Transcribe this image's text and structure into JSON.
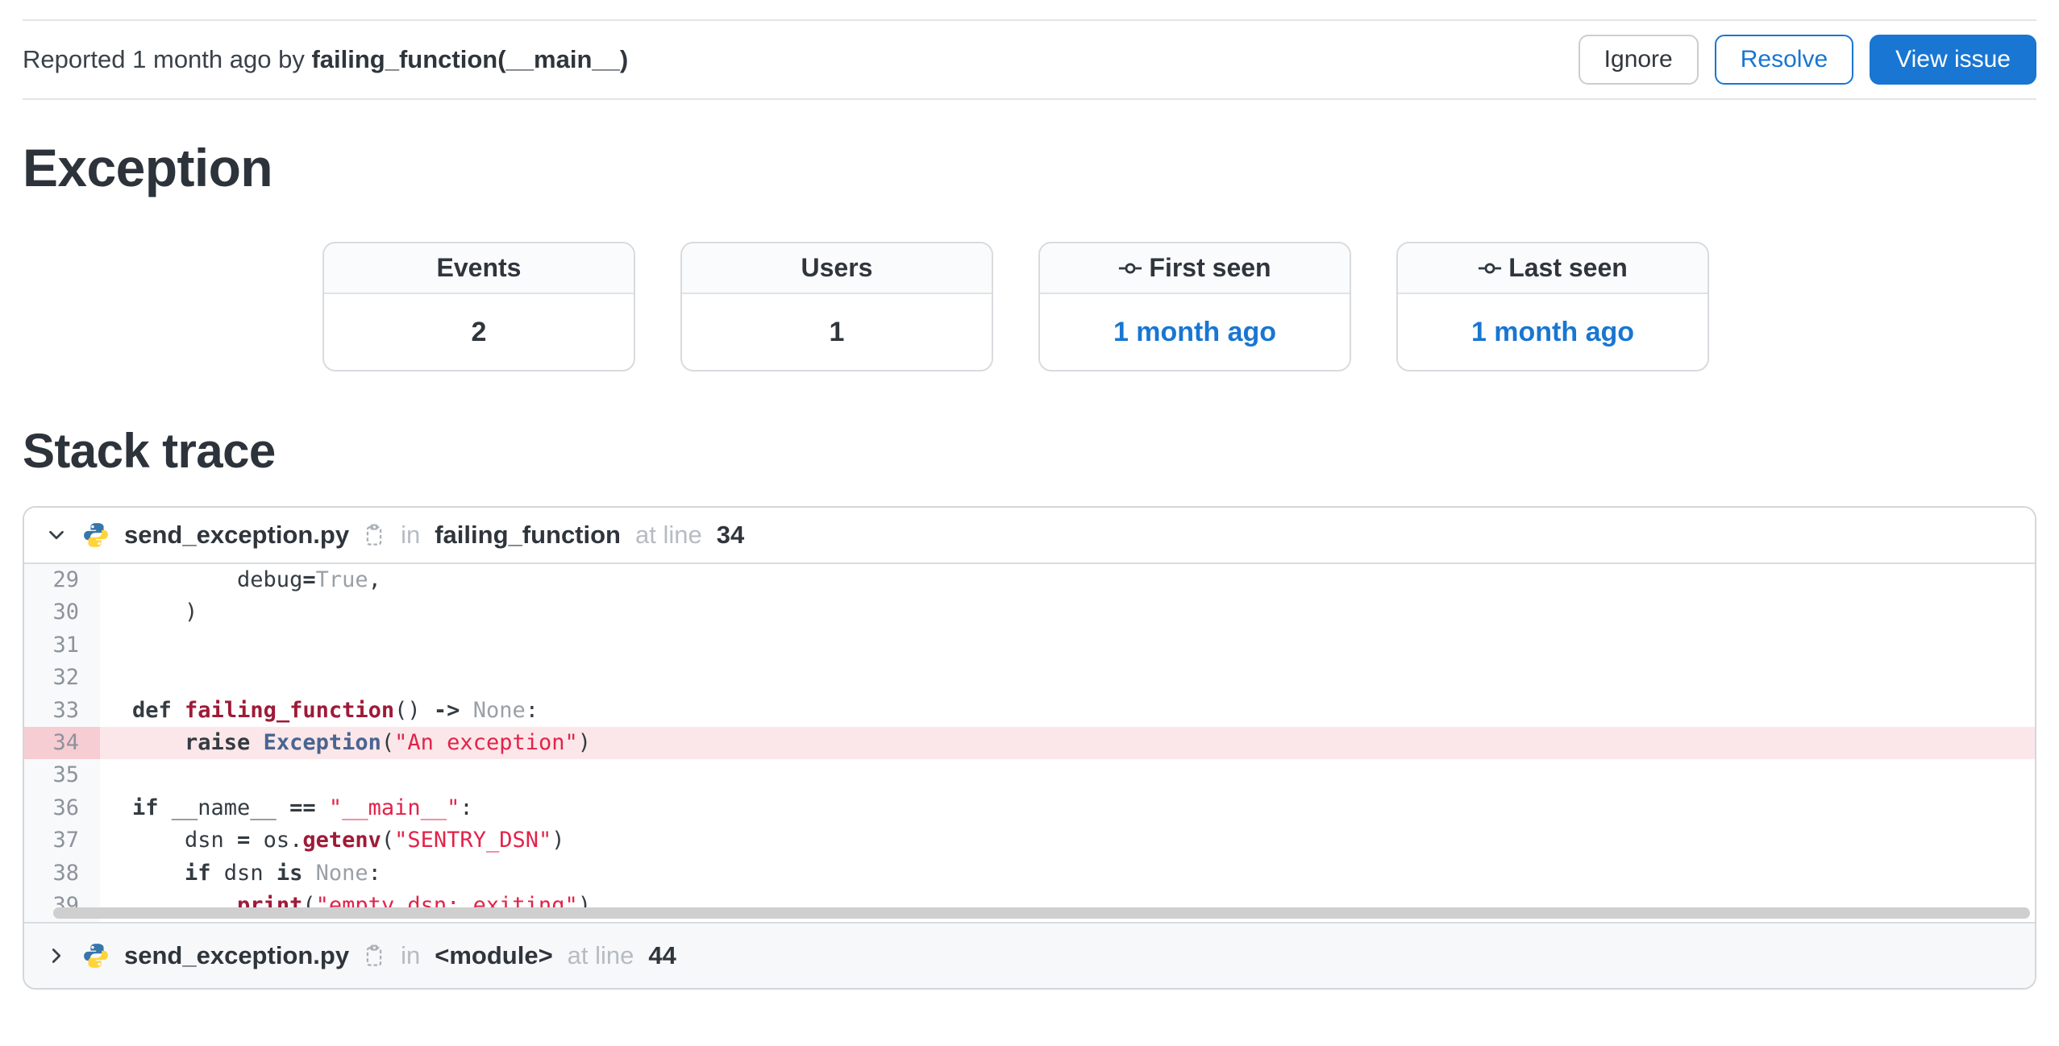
{
  "accent_color": "#1976d2",
  "header": {
    "reported_prefix": "Reported 1 month ago by",
    "culprit": "failing_function(__main__)",
    "buttons": [
      {
        "label": "Ignore",
        "style": "default"
      },
      {
        "label": "Resolve",
        "style": "outline"
      },
      {
        "label": "View issue",
        "style": "primary"
      }
    ]
  },
  "sections": {
    "exception_title": "Exception",
    "stack_trace_title": "Stack trace"
  },
  "stats": [
    {
      "label": "Events",
      "value": "2",
      "icon": "",
      "link": false
    },
    {
      "label": "Users",
      "value": "1",
      "icon": "",
      "link": false
    },
    {
      "label": "First seen",
      "value": "1 month ago",
      "icon": "commit-icon",
      "link": true
    },
    {
      "label": "Last seen",
      "value": "1 month ago",
      "icon": "commit-icon",
      "link": true
    }
  ],
  "frames": [
    {
      "expanded": true,
      "file_icon": "python-icon",
      "filename": "send_exception.py",
      "in_label": "in",
      "function": "failing_function",
      "at_line_label": "at line",
      "line": "34"
    },
    {
      "expanded": false,
      "file_icon": "python-icon",
      "filename": "send_exception.py",
      "in_label": "in",
      "function": "<module>",
      "at_line_label": "at line",
      "line": "44"
    }
  ],
  "code": {
    "highlight_line": 34,
    "lines": [
      {
        "no": 29,
        "tokens": [
          [
            "        debug",
            "p"
          ],
          [
            "=",
            "k"
          ],
          [
            "True",
            "n"
          ],
          [
            ",",
            "p"
          ]
        ]
      },
      {
        "no": 30,
        "tokens": [
          [
            "    )",
            "p"
          ]
        ]
      },
      {
        "no": 31,
        "tokens": []
      },
      {
        "no": 32,
        "tokens": []
      },
      {
        "no": 33,
        "tokens": [
          [
            "def",
            "k"
          ],
          [
            " ",
            "p"
          ],
          [
            "failing_function",
            "f"
          ],
          [
            "()",
            "p"
          ],
          [
            " ",
            "p"
          ],
          [
            "->",
            "k"
          ],
          [
            " ",
            "p"
          ],
          [
            "None",
            "n"
          ],
          [
            ":",
            "p"
          ]
        ]
      },
      {
        "no": 34,
        "tokens": [
          [
            "    ",
            "p"
          ],
          [
            "raise",
            "k"
          ],
          [
            " ",
            "p"
          ],
          [
            "Exception",
            "c"
          ],
          [
            "(",
            "p"
          ],
          [
            "\"An exception\"",
            "s"
          ],
          [
            ")",
            "p"
          ]
        ]
      },
      {
        "no": 35,
        "tokens": []
      },
      {
        "no": 36,
        "tokens": [
          [
            "if",
            "k"
          ],
          [
            " __name__ ",
            "p"
          ],
          [
            "==",
            "k"
          ],
          [
            " ",
            "p"
          ],
          [
            "\"__main__\"",
            "s"
          ],
          [
            ":",
            "p"
          ]
        ]
      },
      {
        "no": 37,
        "tokens": [
          [
            "    dsn ",
            "p"
          ],
          [
            "=",
            "k"
          ],
          [
            " os.",
            "p"
          ],
          [
            "getenv",
            "f"
          ],
          [
            "(",
            "p"
          ],
          [
            "\"SENTRY_DSN\"",
            "s"
          ],
          [
            ")",
            "p"
          ]
        ]
      },
      {
        "no": 38,
        "tokens": [
          [
            "    ",
            "p"
          ],
          [
            "if",
            "k"
          ],
          [
            " dsn ",
            "p"
          ],
          [
            "is",
            "k"
          ],
          [
            " ",
            "p"
          ],
          [
            "None",
            "n"
          ],
          [
            ":",
            "p"
          ]
        ]
      },
      {
        "no": 39,
        "tokens": [
          [
            "        ",
            "p"
          ],
          [
            "print",
            "f"
          ],
          [
            "(",
            "p"
          ],
          [
            "\"empty dsn; exiting\"",
            "s"
          ],
          [
            ")",
            "p"
          ]
        ]
      }
    ]
  }
}
